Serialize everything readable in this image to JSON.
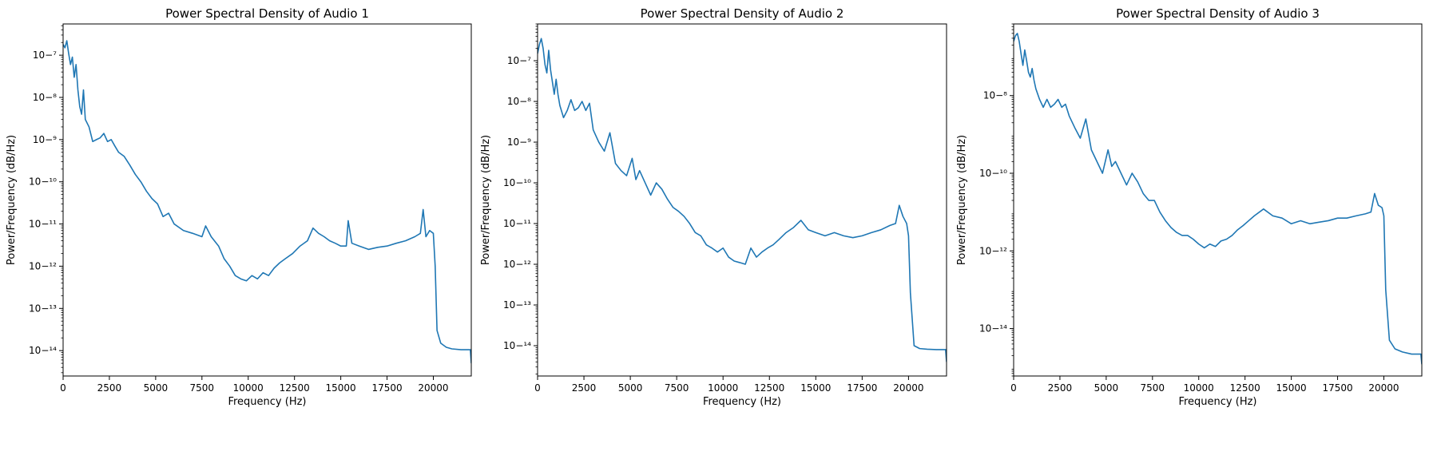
{
  "chart_data": [
    {
      "type": "line",
      "title": "Power Spectral Density of Audio 1",
      "xlabel": "Frequency (Hz)",
      "ylabel": "Power/Frequency (dB/Hz)",
      "xscale": "linear",
      "yscale": "log",
      "xlim": [
        0,
        22050
      ],
      "ylim": [
        2.5e-15,
        5.5e-07
      ],
      "xticks": [
        0,
        2500,
        5000,
        7500,
        10000,
        12500,
        15000,
        17500,
        20000
      ],
      "xtick_labels": [
        "0",
        "2500",
        "5000",
        "7500",
        "10000",
        "12500",
        "15000",
        "17500",
        "20000"
      ],
      "yticks": [
        -14,
        -13,
        -12,
        -11,
        -10,
        -9,
        -8,
        -7
      ],
      "grid": false,
      "color": "#1f77b4",
      "series": [
        {
          "x": [
            0,
            100,
            200,
            300,
            400,
            500,
            600,
            700,
            800,
            900,
            1000,
            1100,
            1200,
            1400,
            1600,
            1800,
            2000,
            2200,
            2400,
            2600,
            2800,
            3000,
            3300,
            3600,
            3900,
            4200,
            4500,
            4800,
            5100,
            5400,
            5700,
            6000,
            6500,
            7000,
            7500,
            7700,
            8000,
            8400,
            8700,
            9000,
            9300,
            9600,
            9900,
            10200,
            10500,
            10800,
            11100,
            11400,
            11700,
            12000,
            12400,
            12800,
            13200,
            13500,
            13800,
            14100,
            14400,
            14700,
            15000,
            15300,
            15400,
            15600,
            16000,
            16500,
            17000,
            17500,
            18000,
            18500,
            19000,
            19300,
            19450,
            19600,
            19800,
            20000,
            20100,
            20200,
            20400,
            20700,
            21000,
            21500,
            22000,
            22050
          ],
          "y": [
            1.8e-07,
            1.5e-07,
            2.2e-07,
            1.1e-07,
            6e-08,
            9e-08,
            3e-08,
            6e-08,
            1.5e-08,
            6e-09,
            4e-09,
            1.5e-08,
            3e-09,
            2e-09,
            9e-10,
            1e-09,
            1.1e-09,
            1.4e-09,
            9e-10,
            1e-09,
            7e-10,
            5e-10,
            4e-10,
            2.5e-10,
            1.5e-10,
            1e-10,
            6e-11,
            4e-11,
            3e-11,
            1.5e-11,
            1.8e-11,
            1e-11,
            7e-12,
            6e-12,
            5e-12,
            9e-12,
            5e-12,
            3e-12,
            1.5e-12,
            1e-12,
            6e-13,
            5e-13,
            4.5e-13,
            6e-13,
            5e-13,
            7e-13,
            6e-13,
            9e-13,
            1.2e-12,
            1.5e-12,
            2e-12,
            3e-12,
            4e-12,
            8e-12,
            6e-12,
            5e-12,
            4e-12,
            3.5e-12,
            3e-12,
            3e-12,
            1.2e-11,
            3.5e-12,
            3e-12,
            2.5e-12,
            2.8e-12,
            3e-12,
            3.5e-12,
            4e-12,
            5e-12,
            6e-12,
            2.2e-11,
            5e-12,
            7e-12,
            6e-12,
            1e-12,
            3e-14,
            1.5e-14,
            1.2e-14,
            1.1e-14,
            1.05e-14,
            1.05e-14,
            5e-15
          ]
        }
      ]
    },
    {
      "type": "line",
      "title": "Power Spectral Density of Audio 2",
      "xlabel": "Frequency (Hz)",
      "ylabel": "Power/Frequency (dB/Hz)",
      "xscale": "linear",
      "yscale": "log",
      "xlim": [
        0,
        22050
      ],
      "ylim": [
        1.8e-15,
        8e-07
      ],
      "xticks": [
        0,
        2500,
        5000,
        7500,
        10000,
        12500,
        15000,
        17500,
        20000
      ],
      "xtick_labels": [
        "0",
        "2500",
        "5000",
        "7500",
        "10000",
        "12500",
        "15000",
        "17500",
        "20000"
      ],
      "yticks": [
        -14,
        -13,
        -12,
        -11,
        -10,
        -9,
        -8,
        -7
      ],
      "grid": false,
      "color": "#1f77b4",
      "series": [
        {
          "x": [
            0,
            100,
            200,
            300,
            400,
            500,
            600,
            700,
            800,
            900,
            1000,
            1100,
            1200,
            1400,
            1600,
            1800,
            2000,
            2200,
            2400,
            2600,
            2800,
            3000,
            3300,
            3600,
            3900,
            4200,
            4500,
            4800,
            5100,
            5300,
            5500,
            5800,
            6100,
            6400,
            6700,
            7000,
            7300,
            7600,
            7900,
            8200,
            8500,
            8800,
            9100,
            9400,
            9700,
            10000,
            10300,
            10600,
            10900,
            11200,
            11500,
            11800,
            12100,
            12400,
            12700,
            13000,
            13400,
            13800,
            14200,
            14600,
            15000,
            15500,
            16000,
            16500,
            17000,
            17500,
            18000,
            18500,
            19000,
            19300,
            19500,
            19700,
            19900,
            20000,
            20100,
            20300,
            20600,
            21000,
            21500,
            22000,
            22050
          ],
          "y": [
            1.5e-07,
            2.5e-07,
            3.5e-07,
            2e-07,
            8e-08,
            5e-08,
            1.8e-07,
            6e-08,
            3e-08,
            1.5e-08,
            3.5e-08,
            1.5e-08,
            8e-09,
            4e-09,
            6e-09,
            1.1e-08,
            6e-09,
            7e-09,
            1e-08,
            6e-09,
            9e-09,
            2e-09,
            1e-09,
            6e-10,
            1.7e-09,
            3e-10,
            2e-10,
            1.5e-10,
            4e-10,
            1.2e-10,
            2e-10,
            1e-10,
            5e-11,
            1e-10,
            7e-11,
            4e-11,
            2.5e-11,
            2e-11,
            1.5e-11,
            1e-11,
            6e-12,
            5e-12,
            3e-12,
            2.5e-12,
            2e-12,
            2.5e-12,
            1.5e-12,
            1.2e-12,
            1.1e-12,
            1e-12,
            2.5e-12,
            1.5e-12,
            2e-12,
            2.5e-12,
            3e-12,
            4e-12,
            6e-12,
            8e-12,
            1.2e-11,
            7e-12,
            6e-12,
            5e-12,
            6e-12,
            5e-12,
            4.5e-12,
            5e-12,
            6e-12,
            7e-12,
            9e-12,
            1e-11,
            2.8e-11,
            1.5e-11,
            1e-11,
            5e-12,
            2e-13,
            1e-14,
            8.5e-15,
            8.2e-15,
            8e-15,
            8e-15,
            4e-15
          ]
        }
      ]
    },
    {
      "type": "line",
      "title": "Power Spectral Density of Audio 3",
      "xlabel": "Frequency (Hz)",
      "ylabel": "Power/Frequency (dB/Hz)",
      "xscale": "linear",
      "yscale": "log",
      "xlim": [
        0,
        22050
      ],
      "ylim": [
        6e-16,
        7e-07
      ],
      "xticks": [
        0,
        2500,
        5000,
        7500,
        10000,
        12500,
        15000,
        17500,
        20000
      ],
      "xtick_labels": [
        "0",
        "2500",
        "5000",
        "7500",
        "10000",
        "12500",
        "15000",
        "17500",
        "20000"
      ],
      "yticks": [
        -14,
        -12,
        -10,
        -8
      ],
      "grid": false,
      "color": "#1f77b4",
      "series": [
        {
          "x": [
            0,
            100,
            200,
            300,
            400,
            500,
            600,
            700,
            800,
            900,
            1000,
            1100,
            1200,
            1400,
            1600,
            1800,
            2000,
            2200,
            2400,
            2600,
            2800,
            3000,
            3300,
            3600,
            3900,
            4200,
            4500,
            4800,
            5100,
            5300,
            5500,
            5800,
            6100,
            6400,
            6700,
            7000,
            7300,
            7600,
            7900,
            8200,
            8500,
            8800,
            9100,
            9400,
            9700,
            10000,
            10300,
            10600,
            10900,
            11200,
            11500,
            11800,
            12100,
            12400,
            12700,
            13000,
            13500,
            14000,
            14500,
            15000,
            15500,
            16000,
            16500,
            17000,
            17500,
            18000,
            18500,
            19000,
            19300,
            19500,
            19700,
            19900,
            20000,
            20100,
            20300,
            20600,
            21000,
            21500,
            22000,
            22050
          ],
          "y": [
            2.5e-07,
            3.5e-07,
            4e-07,
            2.5e-07,
            1.2e-07,
            6e-08,
            1.5e-07,
            8e-08,
            4e-08,
            3e-08,
            5e-08,
            2.5e-08,
            1.5e-08,
            8e-09,
            5e-09,
            8e-09,
            5e-09,
            6e-09,
            8e-09,
            5e-09,
            6e-09,
            3e-09,
            1.5e-09,
            8e-10,
            2.5e-09,
            4e-10,
            2e-10,
            1e-10,
            4e-10,
            1.5e-10,
            2e-10,
            1e-10,
            5e-11,
            1e-10,
            6e-11,
            3e-11,
            2e-11,
            2e-11,
            1e-11,
            6e-12,
            4e-12,
            3e-12,
            2.5e-12,
            2.5e-12,
            2e-12,
            1.5e-12,
            1.2e-12,
            1.5e-12,
            1.3e-12,
            1.8e-12,
            2e-12,
            2.5e-12,
            3.5e-12,
            4.5e-12,
            6e-12,
            8e-12,
            1.2e-11,
            8e-12,
            7e-12,
            5e-12,
            6e-12,
            5e-12,
            5.5e-12,
            6e-12,
            7e-12,
            7e-12,
            8e-12,
            9e-12,
            1e-11,
            3e-11,
            1.5e-11,
            1.3e-11,
            8e-12,
            1e-13,
            5e-15,
            3e-15,
            2.5e-15,
            2.2e-15,
            2.2e-15,
            1.2e-15
          ]
        }
      ]
    }
  ]
}
